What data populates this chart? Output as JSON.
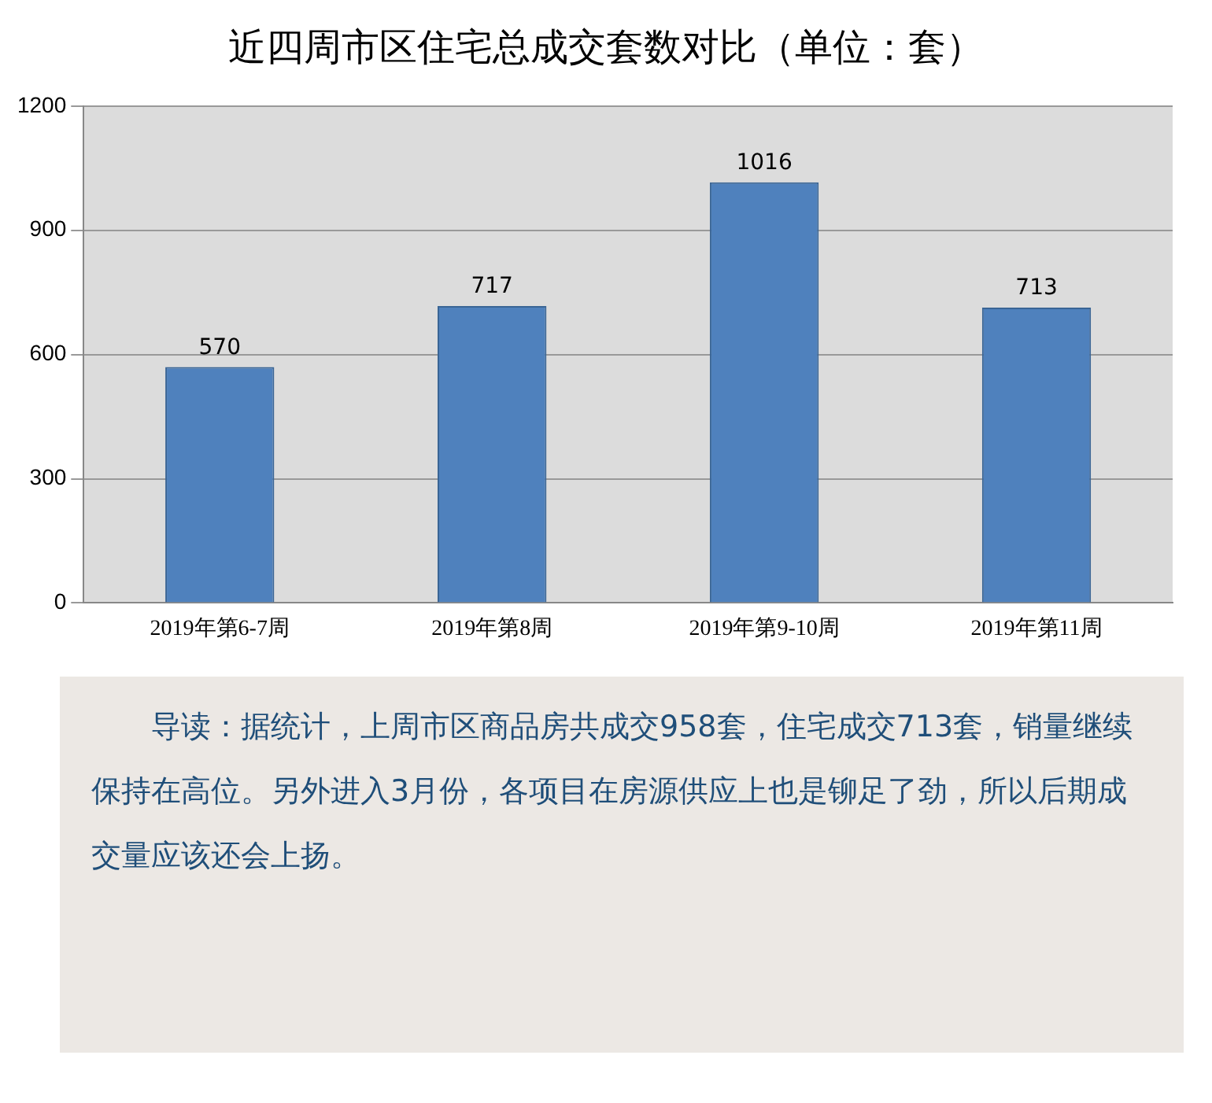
{
  "chart_data": {
    "type": "bar",
    "title": "近四周市区住宅总成交套数对比（单位：套）",
    "categories": [
      "2019年第6-7周",
      "2019年第8周",
      "2019年第9-10周",
      "2019年第11周"
    ],
    "values": [
      570,
      717,
      1016,
      713
    ],
    "color": "#4f81bd",
    "ylim": [
      0,
      1200
    ],
    "yticks": [
      0,
      300,
      600,
      900,
      1200
    ],
    "grid": "y",
    "data_labels": true,
    "annotations": [
      "导读：据统计，上周市区商品房共成交958套，住宅成交713套，销量继续保持在高位。另外进入3月份，各项目在房源供应上也是铆足了劲，所以后期成交量应该还会上扬。"
    ]
  }
}
